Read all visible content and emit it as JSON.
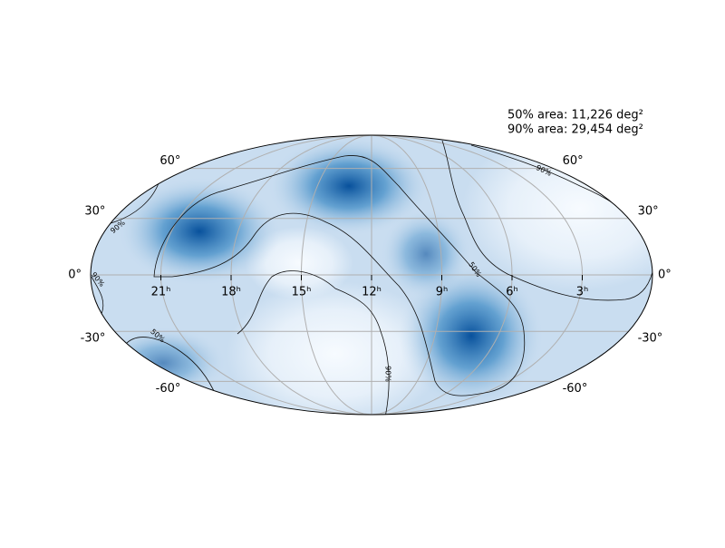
{
  "map": {
    "annotations": [
      "50% area: 11,226 deg²",
      "90% area: 29,454 deg²"
    ],
    "lat_ticks": [
      {
        "value": 60,
        "label": "60°"
      },
      {
        "value": 30,
        "label": "30°"
      },
      {
        "value": 0,
        "label": "0°"
      },
      {
        "value": -30,
        "label": "-30°"
      },
      {
        "value": -60,
        "label": "-60°"
      }
    ],
    "ra_ticks": [
      {
        "value": 21,
        "label": "21ʰ"
      },
      {
        "value": 18,
        "label": "18ʰ"
      },
      {
        "value": 15,
        "label": "15ʰ"
      },
      {
        "value": 12,
        "label": "12ʰ"
      },
      {
        "value": 9,
        "label": "9ʰ"
      },
      {
        "value": 6,
        "label": "6ʰ"
      },
      {
        "value": 3,
        "label": "3ʰ"
      }
    ],
    "contour_labels": [
      "90%",
      "50%"
    ]
  }
}
